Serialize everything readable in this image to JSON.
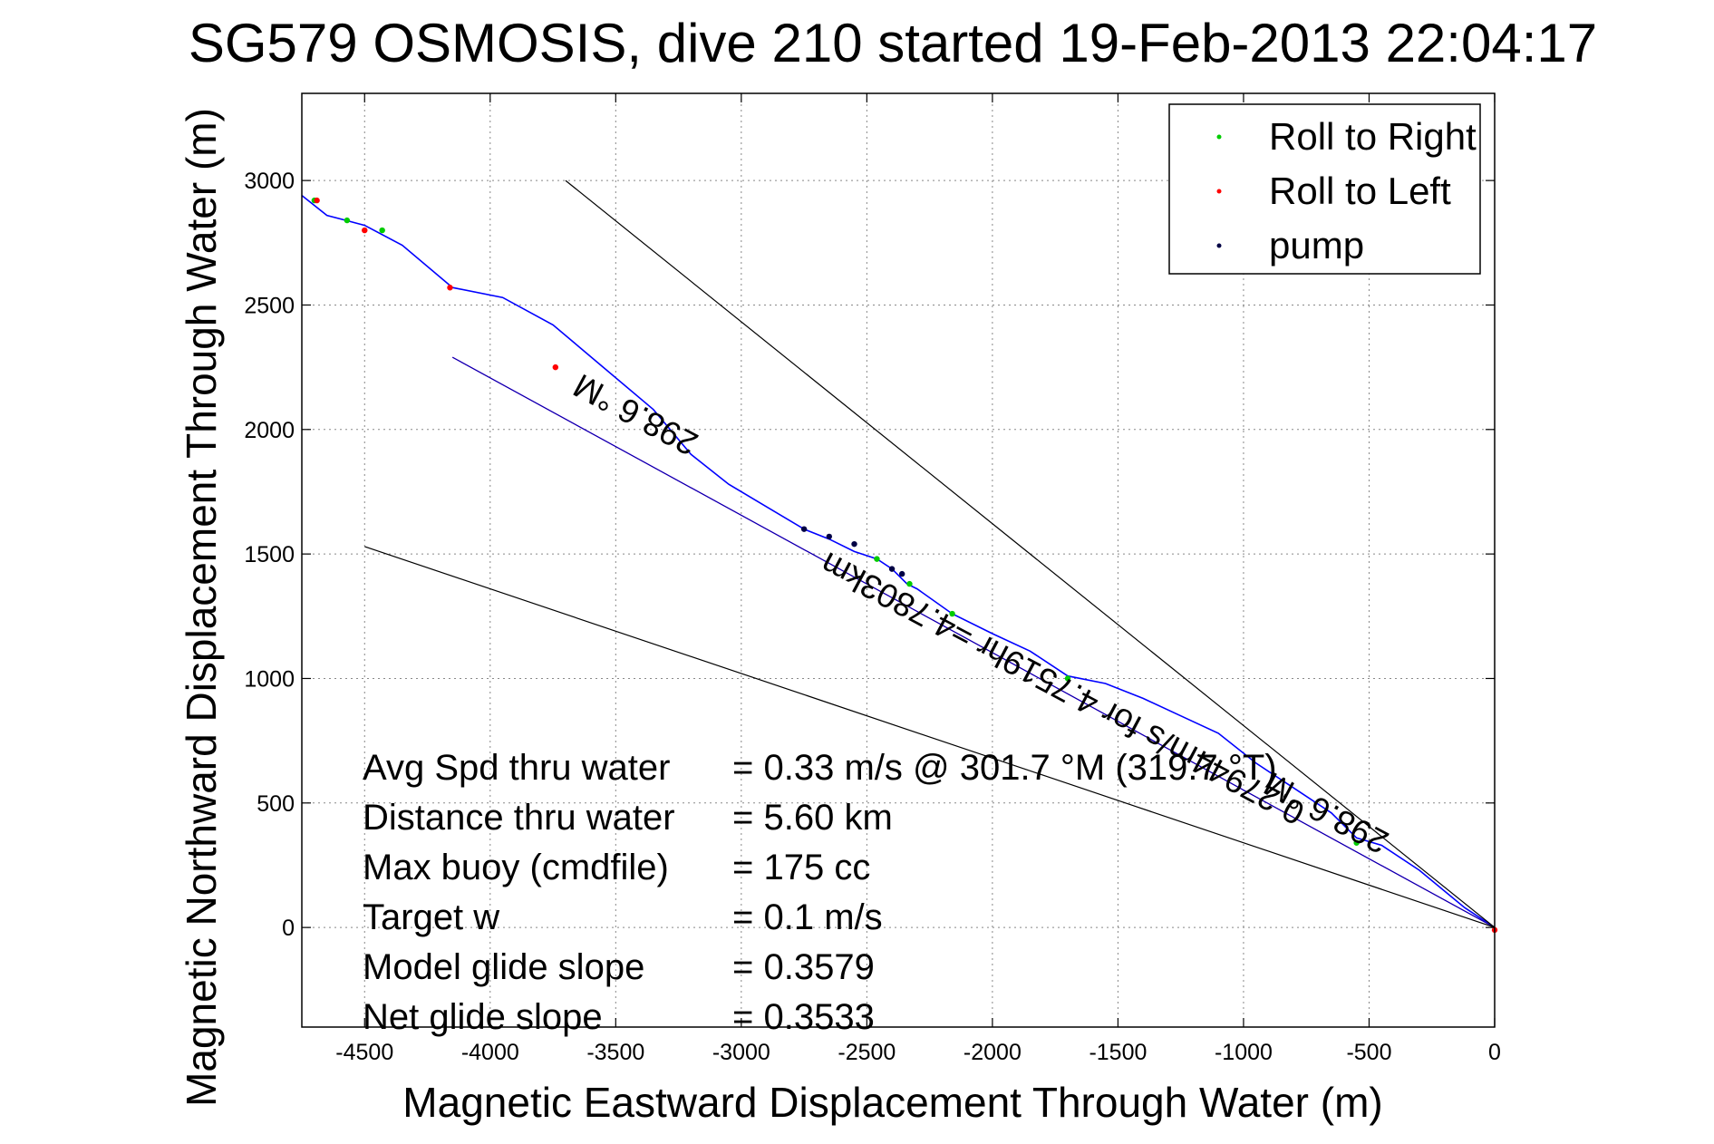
{
  "chart_data": {
    "type": "line",
    "title": "SG579 OSMOSIS, dive 210 started 19-Feb-2013 22:04:17",
    "xlabel": "Magnetic Eastward Displacement Through Water (m)",
    "ylabel": "Magnetic Northward Displacement Through Water (m)",
    "xlim": [
      -4750,
      0
    ],
    "ylim": [
      -400,
      3350
    ],
    "xticks": [
      -4500,
      -4000,
      -3500,
      -3000,
      -2500,
      -2000,
      -1500,
      -1000,
      -500,
      0
    ],
    "yticks": [
      0,
      500,
      1000,
      1500,
      2000,
      2500,
      3000
    ],
    "grid": true,
    "legend_position": "top-right",
    "legend": [
      {
        "label": "Roll to Right",
        "color": "#00cc00"
      },
      {
        "label": "Roll to Left",
        "color": "#ff0000"
      },
      {
        "label": "pump",
        "color": "#000044"
      }
    ],
    "series": [
      {
        "key": "track",
        "color": "#0000ff",
        "x": [
          0,
          -120,
          -300,
          -450,
          -550,
          -650,
          -800,
          -950,
          -1100,
          -1250,
          -1400,
          -1550,
          -1700,
          -1850,
          -2000,
          -2160,
          -2300,
          -2340,
          -2400,
          -2460,
          -2550,
          -2650,
          -2750,
          -2900,
          -3050,
          -3200,
          -3350,
          -3550,
          -3750,
          -3950,
          -4150,
          -4350,
          -4500,
          -4650,
          -4750
        ],
        "y": [
          0,
          80,
          230,
          330,
          360,
          460,
          560,
          660,
          780,
          850,
          920,
          980,
          1010,
          1110,
          1180,
          1260,
          1360,
          1380,
          1440,
          1480,
          1510,
          1560,
          1600,
          1690,
          1780,
          1900,
          2080,
          2250,
          2420,
          2530,
          2570,
          2740,
          2820,
          2860,
          2940
        ]
      },
      {
        "key": "heading-line",
        "color": "#ff00ff",
        "x": [
          0,
          -4150
        ],
        "y": [
          0,
          2290
        ]
      },
      {
        "key": "heading-line-2",
        "color": "#0000aa",
        "x": [
          0,
          -4150
        ],
        "y": [
          0,
          2290
        ]
      },
      {
        "key": "upper-bound",
        "color": "#000000",
        "x": [
          0,
          -3700
        ],
        "y": [
          0,
          3000
        ]
      },
      {
        "key": "lower-bound",
        "color": "#000000",
        "x": [
          0,
          -4500
        ],
        "y": [
          0,
          1530
        ]
      }
    ],
    "markers": {
      "roll_right": {
        "x": [
          -4700,
          -4430,
          -2460,
          -2330,
          -2160,
          -1700,
          -550,
          -4570
        ],
        "y": [
          2920,
          2800,
          1480,
          1380,
          1260,
          1000,
          340,
          2840
        ]
      },
      "roll_left": {
        "x": [
          -4500,
          -4160,
          -3740,
          -4690,
          0
        ],
        "y": [
          2800,
          2570,
          2250,
          2920,
          -10
        ]
      },
      "pump": {
        "x": [
          -2750,
          -2650,
          -2550,
          -2400,
          -2360
        ],
        "y": [
          1600,
          1570,
          1540,
          1440,
          1420
        ]
      }
    },
    "stats": [
      {
        "label": "Avg Spd thru water",
        "value": "=  0.33 m/s @ 301.7  °M (319.7 °T)"
      },
      {
        "label": "Distance thru water",
        "value": "=  5.60 km"
      },
      {
        "label": "Max buoy (cmdfile)",
        "value": "= 175 cc"
      },
      {
        "label": "Target w",
        "value": "= 0.1 m/s"
      },
      {
        "label": "Model glide slope",
        "value": "= 0.3579"
      },
      {
        "label": "Net glide slope",
        "value": "= 0.3533"
      }
    ],
    "annotations": [
      {
        "text": "298.6 °M",
        "x": -3400,
        "y": 2100,
        "angle": 208
      },
      {
        "text": "0.27944m/s for 4.7519hr =4.7803km",
        "x": -1700,
        "y": 1000,
        "angle": 208
      },
      {
        "text": "298.6 °M",
        "x": -650,
        "y": 500,
        "angle": 208
      }
    ]
  }
}
